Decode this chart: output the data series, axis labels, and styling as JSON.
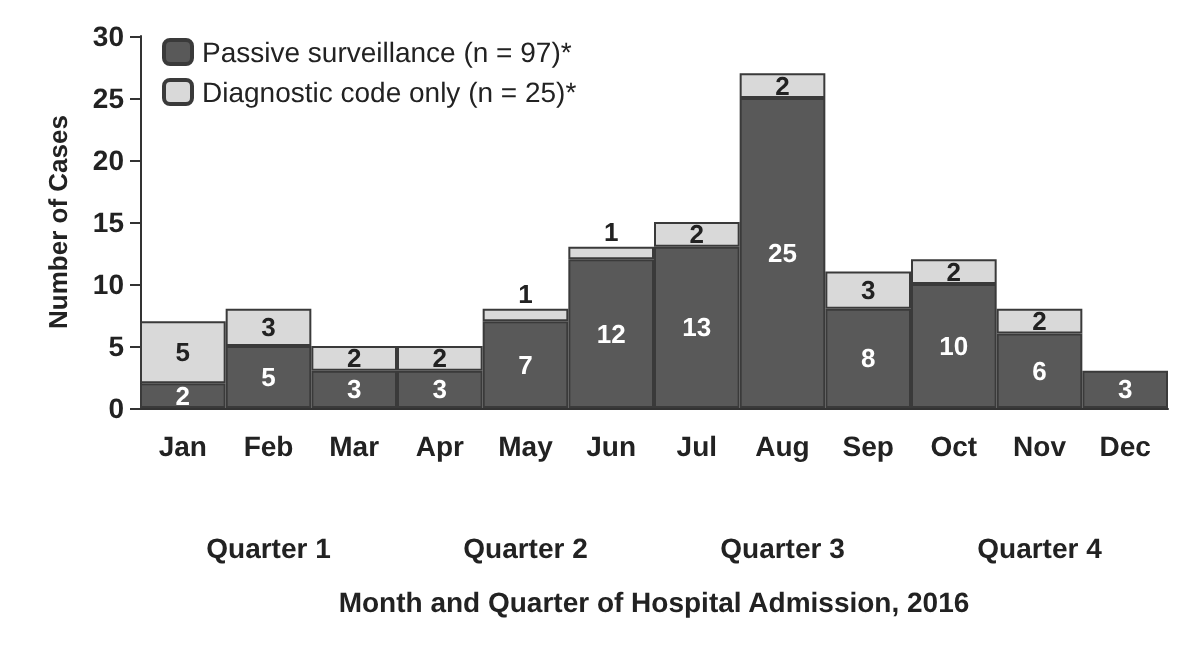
{
  "chart_data": {
    "type": "bar",
    "stacked": true,
    "ylabel": "Number of Cases",
    "xlabel": "Month and Quarter of Hospital Admission, 2016",
    "categories": [
      "Jan",
      "Feb",
      "Mar",
      "Apr",
      "May",
      "Jun",
      "Jul",
      "Aug",
      "Sep",
      "Oct",
      "Nov",
      "Dec"
    ],
    "series": [
      {
        "name": "Passive surveillance (n = 97)*",
        "color": "#595959",
        "values": [
          2,
          5,
          3,
          3,
          7,
          12,
          13,
          25,
          8,
          10,
          6,
          3
        ]
      },
      {
        "name": "Diagnostic code only (n = 25)*",
        "color": "#d9d9d9",
        "values": [
          5,
          3,
          2,
          2,
          1,
          1,
          2,
          2,
          3,
          2,
          2,
          null
        ]
      }
    ],
    "ylim": [
      0,
      30
    ],
    "yticks": [
      0,
      5,
      10,
      15,
      20,
      25,
      30
    ],
    "grid": false,
    "legend": "top left",
    "data_labels": true,
    "annotations": [
      "Quarter 1",
      "Quarter 2",
      "Quarter 3",
      "Quarter 4"
    ]
  }
}
